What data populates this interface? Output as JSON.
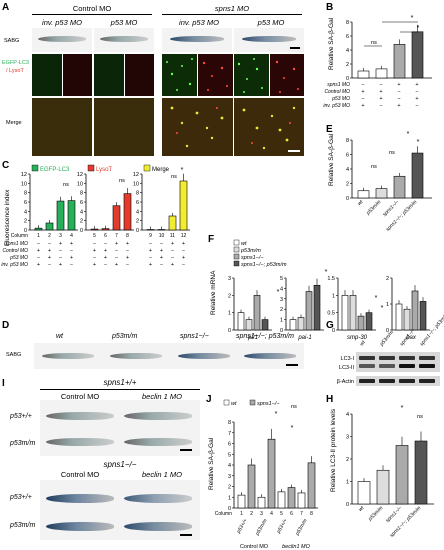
{
  "panel_labels": [
    "A",
    "B",
    "C",
    "D",
    "E",
    "F",
    "G",
    "H",
    "I",
    "J"
  ],
  "panelA": {
    "group_left": "Control MO",
    "group_right": "spns1 MO",
    "col1": "inv. p53 MO",
    "col2": "p53 MO",
    "col3": "inv. p53 MO",
    "col4": "p53 MO",
    "row1": "SABG",
    "row2a": "EGFP-LC3",
    "row2b": "/ LysoT",
    "row3": "Merge"
  },
  "panelB": {
    "ylabel": "Relative SA-β-Gal",
    "rows": [
      "spns1 MO",
      "Control MO",
      "p53 MO",
      "inv. p53 MO"
    ],
    "signs": [
      [
        "−",
        "−",
        "+",
        "+"
      ],
      [
        "+",
        "+",
        "−",
        "−"
      ],
      [
        "−",
        "+",
        "−",
        "+"
      ],
      [
        "+",
        "−",
        "+",
        "−"
      ]
    ],
    "ns": "ns",
    "star": "*"
  },
  "panelC": {
    "ylabel": "Fluorescence index",
    "titles": [
      "EGFP-LC3",
      "LysoT",
      "Merge"
    ],
    "column_label": "Column",
    "cols": [
      "1",
      "2",
      "3",
      "4",
      "5",
      "6",
      "7",
      "8",
      "9",
      "10",
      "11",
      "12"
    ],
    "rows": [
      "spns1 MO",
      "Control MO",
      "p53 MO",
      "inv. p53 MO"
    ],
    "ns": "ns",
    "star": "*"
  },
  "panelD": {
    "labels": [
      "wt",
      "p53m/m",
      "spns1−/−",
      "spns1−/−; p53m/m"
    ],
    "row": "SABG"
  },
  "panelE": {
    "ylabel": "Relative SA-β-Gal",
    "xlabels": [
      "wt",
      "p53m/m",
      "spns1−/−",
      "spns1−/−; p53m/m"
    ],
    "ns": "ns",
    "star": "*"
  },
  "panelF": {
    "ylabel": "Relative mRNA",
    "legend": [
      "wt",
      "p53m/m",
      "spns1−/−",
      "spns1−/−; p53m/m"
    ],
    "genes": [
      "p21",
      "pai-1",
      "smp-30",
      "bax"
    ],
    "star": "*"
  },
  "panelG": {
    "cols": [
      "wt",
      "p53m/m",
      "spns1−/−",
      "spns1−/−; p53m/m"
    ],
    "rows": [
      "LC3-I",
      "LC3-II",
      "β-Actin"
    ]
  },
  "panelH": {
    "ylabel": "Relative LC3-II protein levels",
    "xlabels": [
      "wt",
      "p53m/m",
      "spns1−/−",
      "spns1−/−; p53m/m"
    ],
    "ns": "ns",
    "star": "*"
  },
  "panelI": {
    "top_title": "spns1+/+",
    "bottom_title": "spns1−/−",
    "col1": "Control MO",
    "col2": "beclin 1 MO",
    "rows": [
      "p53+/+",
      "p53m/m",
      "p53+/+",
      "p53m/m"
    ]
  },
  "panelJ": {
    "ylabel": "Relative SA-β-Gal",
    "legend": [
      "wt",
      "spns1−/−"
    ],
    "column_label": "Column",
    "cols": [
      "1",
      "2",
      "3",
      "4",
      "5",
      "6",
      "7",
      "8"
    ],
    "xgroups": [
      "p53+/+",
      "p53m/m",
      "p53+/+",
      "p53m/m"
    ],
    "mo": [
      "Control MO",
      "beclin1 MO"
    ],
    "ns": "ns",
    "star": "*"
  },
  "chart_data": [
    {
      "id": "B",
      "type": "bar",
      "categories": [
        "1",
        "2",
        "3",
        "4"
      ],
      "values": [
        1.0,
        1.3,
        4.8,
        6.6
      ],
      "ylim": [
        0,
        8
      ],
      "yticks": [
        0,
        2,
        4,
        6,
        8
      ]
    },
    {
      "id": "C1",
      "type": "bar",
      "title": "EGFP-LC3",
      "categories": [
        "1",
        "2",
        "3",
        "4"
      ],
      "values": [
        0.4,
        1.5,
        6.2,
        6.3
      ],
      "ylim": [
        0,
        12
      ],
      "yticks": [
        0,
        2,
        4,
        6,
        8,
        10,
        12
      ]
    },
    {
      "id": "C2",
      "type": "bar",
      "title": "LysoT",
      "categories": [
        "5",
        "6",
        "7",
        "8"
      ],
      "values": [
        0.2,
        0.3,
        5.2,
        7.8
      ],
      "ylim": [
        0,
        12
      ]
    },
    {
      "id": "C3",
      "type": "bar",
      "title": "Merge",
      "categories": [
        "9",
        "10",
        "11",
        "12"
      ],
      "values": [
        0.1,
        0.1,
        3.0,
        10.5
      ],
      "ylim": [
        0,
        12
      ]
    },
    {
      "id": "E",
      "type": "bar",
      "categories": [
        "wt",
        "p53m/m",
        "spns1−/−",
        "spns1−/−; p53m/m"
      ],
      "values": [
        1.0,
        1.3,
        3.0,
        6.2
      ],
      "ylim": [
        0,
        8
      ],
      "yticks": [
        0,
        2,
        4,
        6,
        8
      ]
    },
    {
      "id": "F",
      "type": "bar",
      "categories": [
        "p21",
        "pai-1",
        "smp-30",
        "bax"
      ],
      "series": [
        {
          "name": "wt",
          "values": [
            1.0,
            1.0,
            1.0,
            1.0
          ]
        },
        {
          "name": "p53m/m",
          "values": [
            0.6,
            1.2,
            1.0,
            0.8
          ]
        },
        {
          "name": "spns1−/−",
          "values": [
            2.0,
            3.7,
            0.4,
            1.5
          ]
        },
        {
          "name": "spns1−/−; p53m/m",
          "values": [
            0.6,
            4.3,
            0.5,
            1.1
          ]
        }
      ],
      "ylims": [
        [
          0,
          3
        ],
        [
          0,
          5
        ],
        [
          0,
          1.5
        ],
        [
          0,
          2
        ]
      ]
    },
    {
      "id": "H",
      "type": "bar",
      "categories": [
        "wt",
        "p53m/m",
        "spns1−/−",
        "spns1−/−; p53m/m"
      ],
      "values": [
        1.0,
        1.5,
        2.6,
        2.8
      ],
      "ylim": [
        0,
        4
      ],
      "yticks": [
        0,
        1,
        2,
        3,
        4
      ]
    },
    {
      "id": "J",
      "type": "bar",
      "categories": [
        "1",
        "2",
        "3",
        "4",
        "5",
        "6",
        "7",
        "8"
      ],
      "series": [
        {
          "name": "wt",
          "values": [
            1.2,
            null,
            1.0,
            null,
            1.5,
            null,
            1.4,
            null
          ]
        },
        {
          "name": "spns1−/−",
          "values": [
            null,
            4.0,
            null,
            6.4,
            null,
            1.9,
            null,
            4.2
          ]
        }
      ],
      "values": [
        1.2,
        4.0,
        1.0,
        6.4,
        1.5,
        1.9,
        1.4,
        4.2
      ],
      "ylim": [
        0,
        8
      ],
      "yticks": [
        0,
        1,
        2,
        3,
        4,
        5,
        6,
        7,
        8
      ]
    }
  ],
  "colors": {
    "green": "#27b05a",
    "red": "#e23b2b",
    "yellow": "#f2ec31",
    "dark": "#555555",
    "grey": "#aaaaaa",
    "white": "#ffffff"
  }
}
